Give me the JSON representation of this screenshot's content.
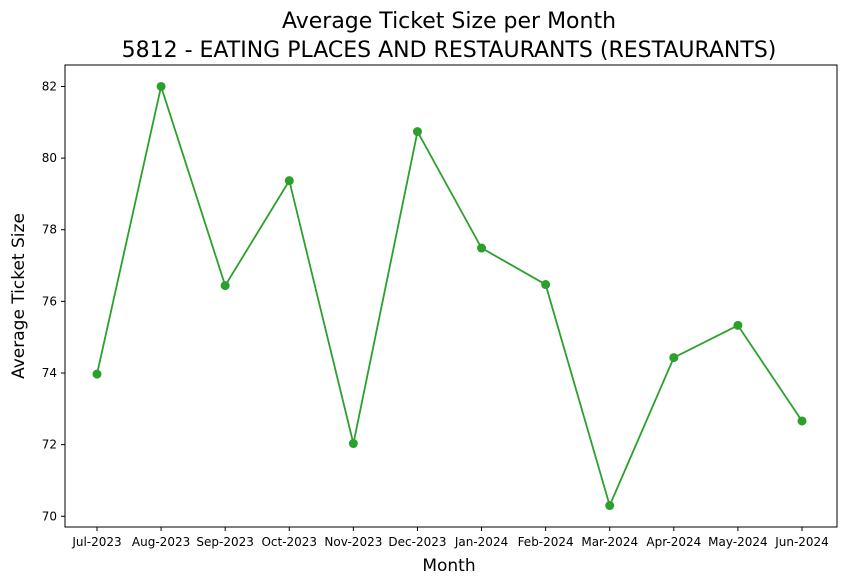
{
  "chart_data": {
    "type": "line",
    "title": "Average Ticket Size per Month",
    "subtitle": "5812 - EATING PLACES AND RESTAURANTS (RESTAURANTS)",
    "xlabel": "Month",
    "ylabel": "Average Ticket Size",
    "categories": [
      "Jul-2023",
      "Aug-2023",
      "Sep-2023",
      "Oct-2023",
      "Nov-2023",
      "Dec-2023",
      "Jan-2024",
      "Feb-2024",
      "Mar-2024",
      "Apr-2024",
      "May-2024",
      "Jun-2024"
    ],
    "series": [
      {
        "values": [
          73.97,
          82.0,
          76.44,
          79.37,
          72.03,
          80.74,
          77.49,
          76.47,
          70.3,
          74.43,
          75.33,
          72.66
        ],
        "color": "#2ca02c",
        "marker": "circle"
      }
    ],
    "yticks": [
      70,
      72,
      74,
      76,
      78,
      80,
      82
    ],
    "ylim": [
      69.7,
      82.6
    ],
    "grid": false,
    "legend": "none"
  }
}
